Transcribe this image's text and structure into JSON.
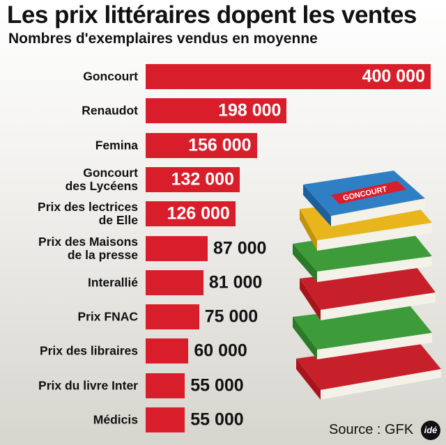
{
  "chart_data": {
    "type": "bar",
    "orientation": "horizontal",
    "title": "Les prix littéraires dopent les ventes",
    "subtitle": "Nombres d'exemplaires vendus en moyenne",
    "categories": [
      "Goncourt",
      "Renaudot",
      "Femina",
      "Goncourt\ndes Lycéens",
      "Prix des lectrices\nde Elle",
      "Prix des Maisons\nde la presse",
      "Interallié",
      "Prix FNAC",
      "Prix des libraires",
      "Prix du livre Inter",
      "Médicis"
    ],
    "values": [
      400000,
      198000,
      156000,
      132000,
      126000,
      87000,
      81000,
      75000,
      60000,
      55000,
      55000
    ],
    "value_labels": [
      "400 000",
      "198 000",
      "156 000",
      "132 000",
      "126 000",
      "87 000",
      "81 000",
      "75 000",
      "60 000",
      "55 000",
      "55 000"
    ],
    "xlim": [
      0,
      400000
    ],
    "grid": false,
    "bar_color": "#d91e2b",
    "source": "Source : GFK"
  },
  "illustration": {
    "book_label": "GONCOURT",
    "icon": "stack-of-books"
  },
  "logo": {
    "text": "idé"
  }
}
